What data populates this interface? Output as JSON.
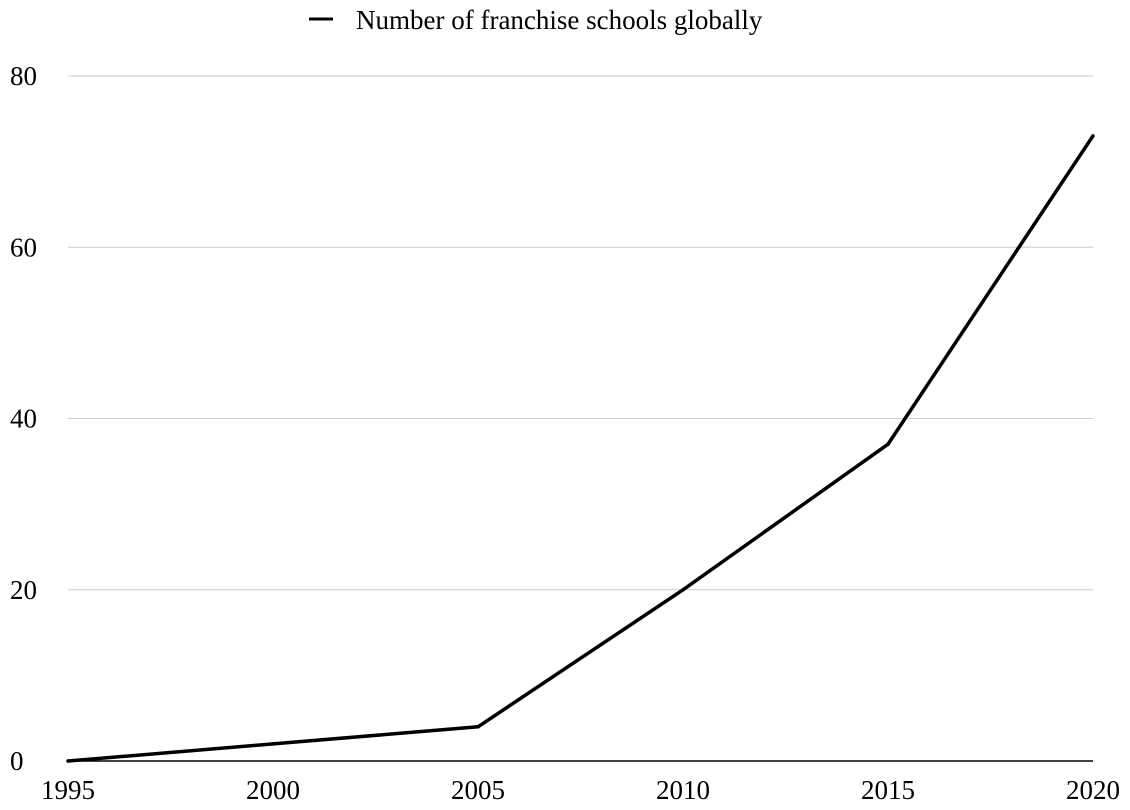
{
  "chart_data": {
    "type": "line",
    "title": "",
    "xlabel": "",
    "ylabel": "",
    "x": [
      1995,
      2000,
      2005,
      2010,
      2015,
      2020
    ],
    "x_ticks": [
      "1995",
      "2000",
      "2005",
      "2010",
      "2015",
      "2020"
    ],
    "y_ticks": [
      "0",
      "20",
      "40",
      "60",
      "80"
    ],
    "xlim": [
      1995,
      2020
    ],
    "ylim": [
      0,
      80
    ],
    "grid": true,
    "legend_position": "top-center",
    "series": [
      {
        "name": "Number of franchise schools globally",
        "color": "#000000",
        "values": [
          0,
          2,
          4,
          20,
          37,
          73
        ]
      }
    ]
  }
}
